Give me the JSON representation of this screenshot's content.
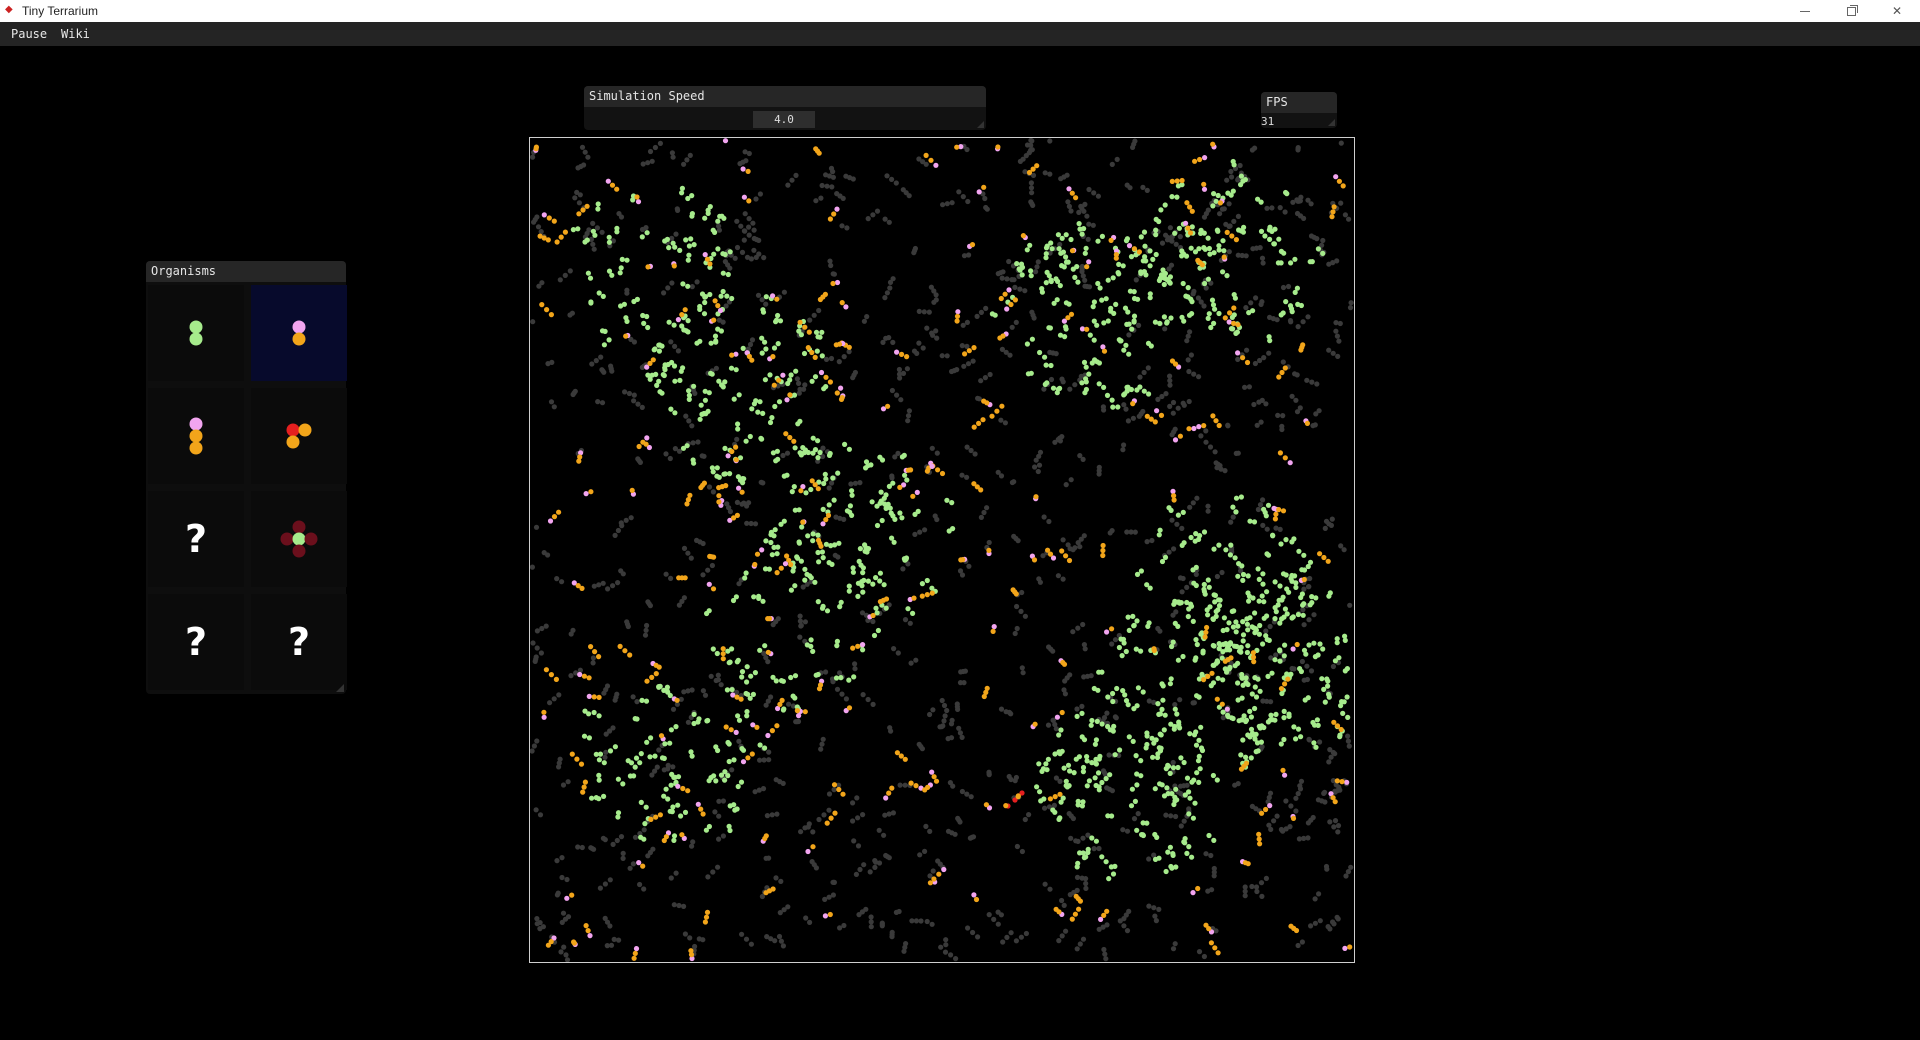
{
  "window": {
    "title": "Tiny Terrarium",
    "controls": [
      "minimize-icon",
      "restore-icon",
      "close-icon"
    ]
  },
  "menu": {
    "pause_label": "Pause",
    "wiki_label": "Wiki"
  },
  "speed_panel": {
    "title": "Simulation Speed",
    "value": "4.0"
  },
  "fps_panel": {
    "title": "FPS",
    "value": "31"
  },
  "organisms_panel": {
    "title": "Organisms",
    "cells": [
      {
        "kind": "known",
        "icon": "green-pair-organism-icon"
      },
      {
        "kind": "known",
        "icon": "pink-orange-organism-icon",
        "selected": true
      },
      {
        "kind": "known",
        "icon": "pink-orange-orange-organism-icon"
      },
      {
        "kind": "known",
        "icon": "red-orange-organism-icon"
      },
      {
        "kind": "unknown",
        "label": "?"
      },
      {
        "kind": "known",
        "icon": "maroon-cross-organism-icon"
      },
      {
        "kind": "unknown",
        "label": "?"
      },
      {
        "kind": "unknown",
        "label": "?"
      }
    ]
  },
  "colors": {
    "plant": "#a6eb8c",
    "herbivore_head": "#f2a5f0",
    "herbivore_body": "#f2a51a",
    "predator": "#e51f1f",
    "dead_matter": "#3a3a3a",
    "cross_outer": "#6b0f1c",
    "cross_center": "#a6eb8c"
  }
}
